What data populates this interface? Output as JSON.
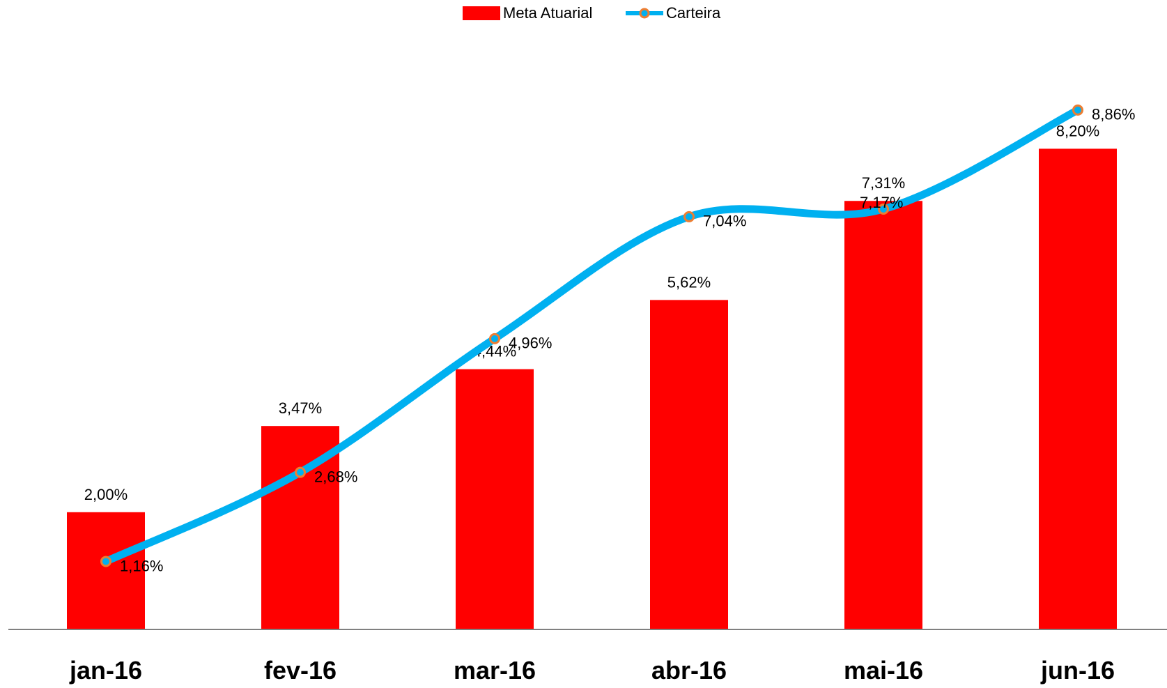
{
  "chart_data": {
    "type": "bar",
    "title": "",
    "xlabel": "",
    "ylabel": "",
    "categories": [
      "jan-16",
      "fev-16",
      "mar-16",
      "abr-16",
      "mai-16",
      "jun-16"
    ],
    "series": [
      {
        "name": "Meta Atuarial",
        "type": "bar",
        "color": "#ff0000",
        "values": [
          2.0,
          3.47,
          4.44,
          5.62,
          7.31,
          8.2
        ],
        "labels": [
          "2,00%",
          "3,47%",
          "4,44%",
          "5,62%",
          "7,31%",
          "8,20%"
        ]
      },
      {
        "name": "Carteira",
        "type": "line",
        "smooth": true,
        "color": "#00b0f0",
        "marker_color": "#ed7d31",
        "values": [
          1.16,
          2.68,
          4.96,
          7.04,
          7.17,
          8.86
        ],
        "labels": [
          "1,16%",
          "2,68%",
          "4,96%",
          "7,04%",
          "7,17%",
          "8,86%"
        ]
      }
    ],
    "ylim": [
      0,
      11
    ],
    "grid": false,
    "legend": "top-center"
  }
}
